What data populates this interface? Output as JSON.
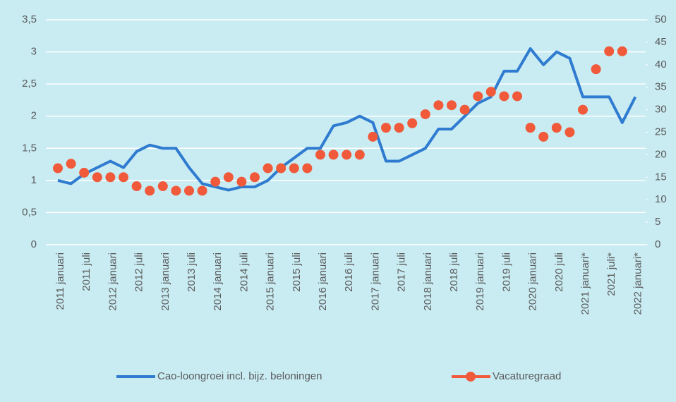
{
  "chart_data": {
    "type": "line",
    "categories": [
      "2011 januari",
      null,
      "2011 juli",
      null,
      "2012 januari",
      null,
      "2012 juli",
      null,
      "2013 januari",
      null,
      "2013 juli",
      null,
      "2014 januari",
      null,
      "2014 juli",
      null,
      "2015 januari",
      null,
      "2015 juli",
      null,
      "2016 januari",
      null,
      "2016 juli",
      null,
      "2017 januari",
      null,
      "2017 juli",
      null,
      "2018 januari",
      null,
      "2018 juli",
      null,
      "2019 januari",
      null,
      "2019 juli",
      null,
      "2020 januari",
      null,
      "2020 juli",
      null,
      "2021 januari*",
      null,
      "2021 juli*",
      null,
      "2022 januari*"
    ],
    "series": [
      {
        "name": "Cao-loongroei incl. bijz. beloningen",
        "type": "line",
        "color": "#2f7bd0",
        "values": [
          1.0,
          0.95,
          1.1,
          1.2,
          1.3,
          1.2,
          1.45,
          1.55,
          1.5,
          1.5,
          1.2,
          0.95,
          0.9,
          0.85,
          0.9,
          0.9,
          1.0,
          1.2,
          1.35,
          1.5,
          1.5,
          1.85,
          1.9,
          2.0,
          1.9,
          1.3,
          1.3,
          1.4,
          1.5,
          1.8,
          1.8,
          2.0,
          2.2,
          2.3,
          2.7,
          2.7,
          3.05,
          2.8,
          3.0,
          2.9,
          2.3,
          2.3,
          2.3,
          1.9,
          2.3
        ]
      },
      {
        "name": "Vacaturegraad",
        "type": "scatter",
        "axis": "y2",
        "color": "#f05a3a",
        "values": [
          17,
          18,
          16,
          15,
          15,
          15,
          13,
          12,
          13,
          12,
          12,
          12,
          14,
          15,
          14,
          15,
          17,
          17,
          17,
          17,
          20,
          20,
          20,
          20,
          24,
          26,
          26,
          27,
          29,
          31,
          31,
          30,
          33,
          34,
          33,
          33,
          26,
          24,
          26,
          25,
          30,
          39,
          43,
          43,
          null
        ]
      }
    ],
    "ylim": [
      0,
      3.5
    ],
    "yticks": [
      0,
      {
        "value": 0.5,
        "label": "0,5"
      },
      1,
      {
        "value": 1.5,
        "label": "1,5"
      },
      2,
      {
        "value": 2.5,
        "label": "2,5"
      },
      3,
      {
        "value": 3.5,
        "label": "3,5"
      }
    ],
    "y2lim": [
      0,
      50
    ],
    "y2ticks": [
      0,
      5,
      10,
      15,
      20,
      25,
      30,
      35,
      40,
      45,
      50
    ],
    "grid": true,
    "legend": "bottom"
  }
}
